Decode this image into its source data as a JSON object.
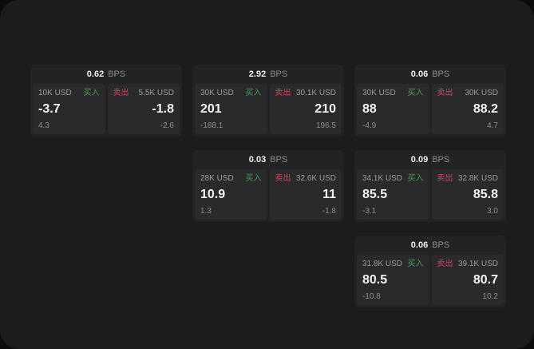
{
  "labels": {
    "buy": "买入",
    "sell": "卖出",
    "bps": "BPS"
  },
  "colors": {
    "background": "#0c0c0c",
    "surface": "#1c1c1d",
    "card": "#232325",
    "panel": "#2a2a2c",
    "buy_green": "#43a04f",
    "sell_red": "#c24a5e",
    "value_white": "#f4f4f5",
    "muted_gray": "#8d8d91"
  },
  "cards": [
    {
      "bps": "0.62",
      "buy": {
        "amount": "10K USD",
        "value": "-3.7",
        "delta": "4.3"
      },
      "sell": {
        "amount": "5.5K USD",
        "value": "-1.8",
        "delta": "-2.6"
      }
    },
    {
      "bps": "2.92",
      "buy": {
        "amount": "30K USD",
        "value": "201",
        "delta": "-188.1"
      },
      "sell": {
        "amount": "30.1K USD",
        "value": "210",
        "delta": "196.5"
      }
    },
    {
      "bps": "0.06",
      "buy": {
        "amount": "30K USD",
        "value": "88",
        "delta": "-4.9"
      },
      "sell": {
        "amount": "30K USD",
        "value": "88.2",
        "delta": "4.7"
      }
    },
    {
      "bps": "0.03",
      "buy": {
        "amount": "28K USD",
        "value": "10.9",
        "delta": "1.3"
      },
      "sell": {
        "amount": "32.6K USD",
        "value": "11",
        "delta": "-1.8"
      }
    },
    {
      "bps": "0.09",
      "buy": {
        "amount": "34.1K USD",
        "value": "85.5",
        "delta": "-3.1"
      },
      "sell": {
        "amount": "32.8K USD",
        "value": "85.8",
        "delta": "3.0"
      }
    },
    {
      "bps": "0.06",
      "buy": {
        "amount": "31.8K USD",
        "value": "80.5",
        "delta": "-10.8"
      },
      "sell": {
        "amount": "39.1K USD",
        "value": "80.7",
        "delta": "10.2"
      }
    }
  ]
}
